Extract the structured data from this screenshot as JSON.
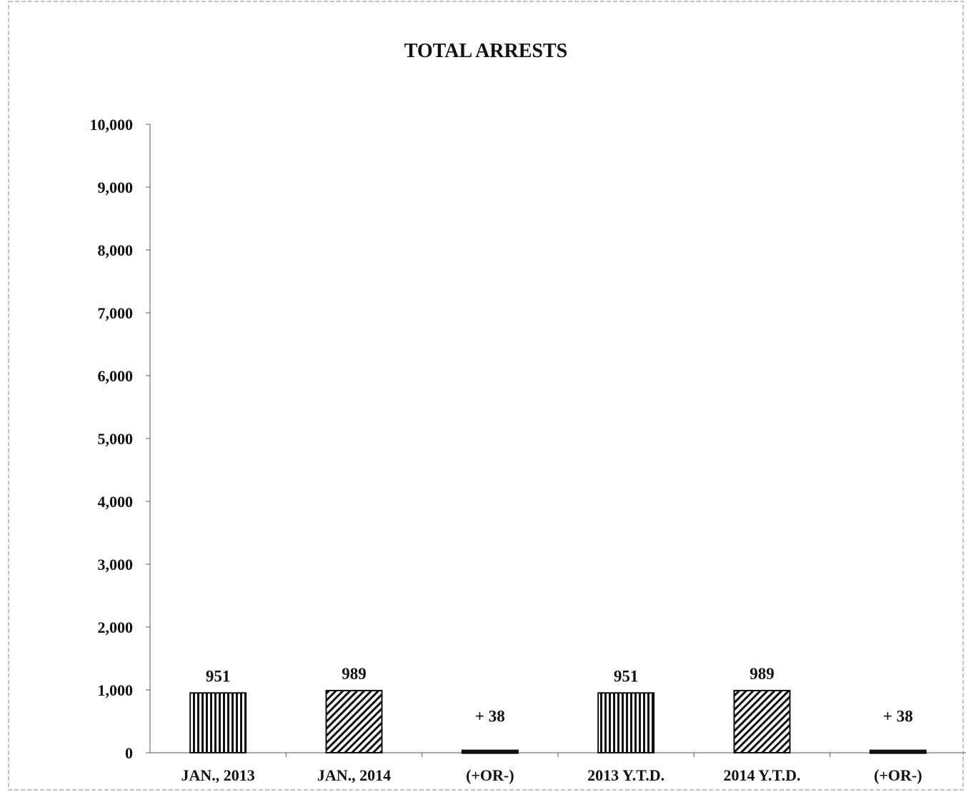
{
  "chart_data": {
    "type": "bar",
    "title": "TOTAL ARRESTS",
    "xlabel": "",
    "ylabel": "",
    "ylim": [
      0,
      10000
    ],
    "yticks": [
      0,
      1000,
      2000,
      3000,
      4000,
      5000,
      6000,
      7000,
      8000,
      9000,
      10000
    ],
    "ytick_labels": [
      "0",
      "1,000",
      "2,000",
      "3,000",
      "4,000",
      "5,000",
      "6,000",
      "7,000",
      "8,000",
      "9,000",
      "10,000"
    ],
    "grid": false,
    "legend": "none",
    "categories": [
      "JAN., 2013",
      "JAN., 2014",
      "(+OR-)",
      "2013 Y.T.D.",
      "2014 Y.T.D.",
      "(+OR-)"
    ],
    "values": [
      951,
      989,
      38,
      951,
      989,
      38
    ],
    "data_labels": [
      "951",
      "989",
      "+ 38",
      "951",
      "989",
      "+ 38"
    ],
    "patterns": [
      "vertical-stripes",
      "diagonal-hatch",
      "solid",
      "vertical-stripes",
      "diagonal-hatch",
      "solid"
    ],
    "colors": {
      "ink": "#111111",
      "background": "#ffffff",
      "frame": "#777777"
    }
  }
}
